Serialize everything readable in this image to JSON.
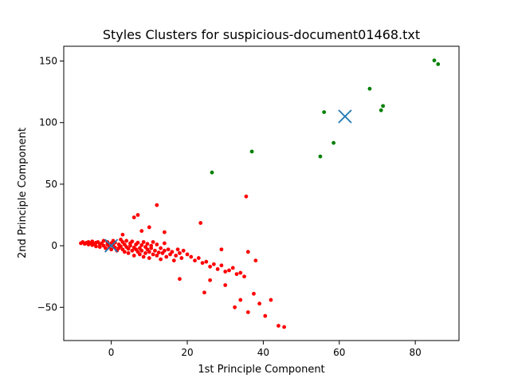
{
  "chart_data": {
    "type": "scatter",
    "title": "Styles Clusters for suspicious-document01468.txt",
    "xlabel": "1st Principle Component",
    "ylabel": "2nd Principle Component",
    "xlim": [
      -12.5,
      91.5
    ],
    "ylim": [
      -77,
      162
    ],
    "xticks": [
      0,
      20,
      40,
      60,
      80
    ],
    "yticks": [
      -50,
      0,
      50,
      100,
      150
    ],
    "grid": false,
    "legend": "none",
    "series": [
      {
        "color": "#ff0000",
        "marker": "dot",
        "points": [
          [
            -8,
            2
          ],
          [
            -7.5,
            3
          ],
          [
            -7,
            1.5
          ],
          [
            -6.5,
            2.5
          ],
          [
            -6,
            1
          ],
          [
            -6,
            3
          ],
          [
            -5.5,
            2
          ],
          [
            -5,
            0.5
          ],
          [
            -5,
            3.5
          ],
          [
            -4.5,
            1.5
          ],
          [
            -4,
            2.5
          ],
          [
            -4,
            -0.5
          ],
          [
            -3.5,
            3
          ],
          [
            -3,
            1
          ],
          [
            -3,
            -1
          ],
          [
            -2.5,
            2
          ],
          [
            -2,
            4
          ],
          [
            -2,
            0
          ],
          [
            -1.5,
            -2
          ],
          [
            -1,
            3
          ],
          [
            -1,
            1
          ],
          [
            -0.5,
            -1
          ],
          [
            0,
            2
          ],
          [
            0,
            -3
          ],
          [
            0.5,
            4
          ],
          [
            0.5,
            0
          ],
          [
            1,
            -1.5
          ],
          [
            1,
            2.5
          ],
          [
            1.5,
            -4
          ],
          [
            2,
            1
          ],
          [
            2,
            -2
          ],
          [
            2.5,
            5
          ],
          [
            2.5,
            -0.5
          ],
          [
            3,
            3
          ],
          [
            3,
            -3
          ],
          [
            3.5,
            -5
          ],
          [
            3.5,
            1
          ],
          [
            4,
            -1
          ],
          [
            4,
            4
          ],
          [
            4.5,
            -2.5
          ],
          [
            4.5,
            -6
          ],
          [
            5,
            0
          ],
          [
            5,
            2
          ],
          [
            5.5,
            -4
          ],
          [
            5.5,
            3.5
          ],
          [
            6,
            -1.5
          ],
          [
            6,
            -8
          ],
          [
            6.5,
            1
          ],
          [
            6.5,
            -3
          ],
          [
            7,
            -5
          ],
          [
            7,
            2.5
          ],
          [
            7.5,
            -2
          ],
          [
            7.5,
            -7
          ],
          [
            8,
            0.5
          ],
          [
            8,
            -4
          ],
          [
            8.5,
            -9
          ],
          [
            8.5,
            3
          ],
          [
            9,
            -1
          ],
          [
            9,
            -6
          ],
          [
            9.5,
            -3
          ],
          [
            9.5,
            1.5
          ],
          [
            10,
            -5
          ],
          [
            10,
            -10
          ],
          [
            10.5,
            0
          ],
          [
            10.5,
            -2
          ],
          [
            11,
            -7
          ],
          [
            11,
            3
          ],
          [
            11.5,
            -4
          ],
          [
            12,
            -8
          ],
          [
            12,
            1
          ],
          [
            12.5,
            -5.5
          ],
          [
            13,
            -2
          ],
          [
            13,
            -11
          ],
          [
            13.5,
            -6
          ],
          [
            14,
            -4
          ],
          [
            14,
            2
          ],
          [
            14.5,
            -9
          ],
          [
            15,
            -3
          ],
          [
            15.5,
            -7
          ],
          [
            16,
            -5
          ],
          [
            16.5,
            -12
          ],
          [
            17,
            -8
          ],
          [
            17.5,
            -3
          ],
          [
            18,
            -6
          ],
          [
            18.5,
            -10
          ],
          [
            19,
            -4
          ],
          [
            20,
            -7
          ],
          [
            21,
            -9
          ],
          [
            22,
            -12
          ],
          [
            23,
            -10
          ],
          [
            24,
            -14
          ],
          [
            25,
            -13
          ],
          [
            26,
            -17
          ],
          [
            27,
            -15
          ],
          [
            28,
            -19
          ],
          [
            29,
            -16
          ],
          [
            30,
            -21
          ],
          [
            31,
            -20
          ],
          [
            32,
            -18
          ],
          [
            33,
            -23
          ],
          [
            34,
            -22
          ],
          [
            35,
            -25
          ],
          [
            6,
            23
          ],
          [
            7,
            25
          ],
          [
            12,
            33
          ],
          [
            8,
            12
          ],
          [
            3,
            9
          ],
          [
            10,
            15
          ],
          [
            14,
            11
          ],
          [
            23.5,
            18.5
          ],
          [
            35.5,
            40
          ],
          [
            18,
            -27
          ],
          [
            24.5,
            -38
          ],
          [
            26,
            -28
          ],
          [
            30,
            -32
          ],
          [
            32.5,
            -50
          ],
          [
            34,
            -44
          ],
          [
            36,
            -54
          ],
          [
            37.5,
            -39
          ],
          [
            39,
            -47
          ],
          [
            40.5,
            -57
          ],
          [
            42,
            -44
          ],
          [
            44,
            -65
          ],
          [
            45.5,
            -66
          ],
          [
            38,
            -12
          ],
          [
            36,
            -5
          ],
          [
            29,
            -3
          ]
        ]
      },
      {
        "color": "#008000",
        "marker": "dot",
        "points": [
          [
            26.5,
            59.5
          ],
          [
            37,
            76.5
          ],
          [
            55,
            72.5
          ],
          [
            56,
            108.5
          ],
          [
            58.5,
            83.5
          ],
          [
            68,
            127.5
          ],
          [
            71,
            110
          ],
          [
            71.5,
            113.5
          ],
          [
            85,
            150.5
          ],
          [
            86,
            147.5
          ]
        ]
      }
    ],
    "centroids": {
      "color": "#1f77b4",
      "marker": "x",
      "points": [
        [
          0,
          0
        ],
        [
          61.5,
          105
        ]
      ]
    }
  }
}
